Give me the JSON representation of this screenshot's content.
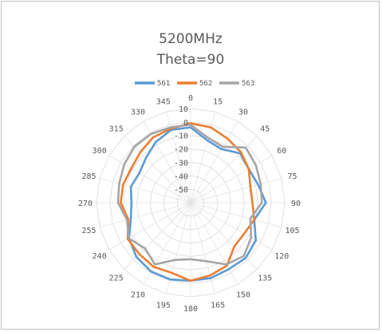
{
  "chart_data": {
    "type": "radar",
    "title": "5200MHz",
    "subtitle": "Theta=90",
    "angles": [
      0,
      15,
      30,
      45,
      60,
      75,
      90,
      105,
      120,
      135,
      150,
      165,
      180,
      195,
      210,
      225,
      240,
      255,
      270,
      285,
      300,
      315,
      330,
      345
    ],
    "angle_labels": [
      "0",
      "15",
      "30",
      "45",
      "60",
      "75",
      "90",
      "105",
      "120",
      "135",
      "150",
      "165",
      "180",
      "195",
      "210",
      "225",
      "240",
      "255",
      "270",
      "285",
      "300",
      "315",
      "330",
      "345"
    ],
    "rlim": [
      -60,
      10
    ],
    "radial_ticks": [
      10,
      0,
      -10,
      -20,
      -30,
      -40,
      -50
    ],
    "radial_tick_labels": [
      "10",
      "0",
      "-10",
      "-20",
      "-30",
      "-40",
      "-50"
    ],
    "legend_position": "top",
    "grid": true,
    "series": [
      {
        "name": "561",
        "color": "#5b9bd5",
        "values": [
          -4,
          -12,
          -14,
          -8,
          -10,
          -8,
          -4,
          -11,
          -4,
          -2,
          -3,
          -2,
          -2,
          -1,
          -1,
          -3,
          -7,
          -14,
          -16,
          -14,
          -16,
          -13,
          -8,
          -4
        ]
      },
      {
        "name": "562",
        "color": "#ed7d31",
        "values": [
          -1,
          -2,
          -5,
          -7,
          -10,
          -14,
          -14,
          -11,
          -14,
          -14,
          -6,
          -4,
          -2,
          -6,
          -5,
          -6,
          -6,
          -12,
          -8,
          -8,
          -9,
          -7,
          -4,
          -3
        ]
      },
      {
        "name": "563",
        "color": "#a5a5a5",
        "values": [
          -2,
          -10,
          -12,
          -2,
          -4,
          -6,
          -7,
          -14,
          -8,
          -4,
          -7,
          -15,
          -18,
          -16,
          -7,
          -12,
          -7,
          -11,
          -6,
          -5,
          -3,
          -1,
          -1,
          -2
        ]
      }
    ]
  }
}
